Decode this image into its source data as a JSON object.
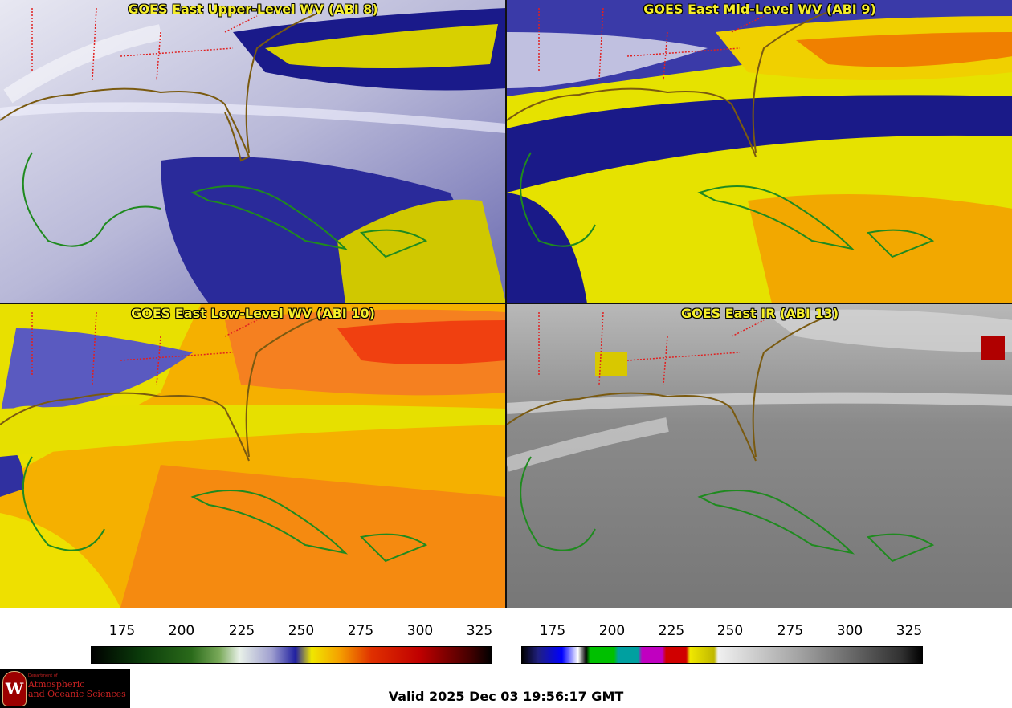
{
  "panels": [
    {
      "id": "upper",
      "title": "GOES East Upper-Level WV (ABI 8)"
    },
    {
      "id": "mid",
      "title": "GOES East Mid-Level WV (ABI 9)"
    },
    {
      "id": "low",
      "title": "GOES East Low-Level WV (ABI 10)"
    },
    {
      "id": "ir",
      "title": "GOES East IR (ABI 13)"
    }
  ],
  "colorbars": {
    "wv": {
      "ticks": [
        "175",
        "200",
        "225",
        "250",
        "275",
        "300",
        "325"
      ]
    },
    "ir": {
      "ticks": [
        "175",
        "200",
        "225",
        "250",
        "275",
        "300",
        "325"
      ]
    }
  },
  "footer": {
    "valid": "Valid 2025 Dec 03 19:56:17 GMT",
    "logo_line1": "Department of",
    "logo_line2": "Atmospheric",
    "logo_line3": "and Oceanic Sciences"
  },
  "colors": {
    "title": "#f5ee2a",
    "coast": "#1f8a1f",
    "state": "#e02020"
  }
}
